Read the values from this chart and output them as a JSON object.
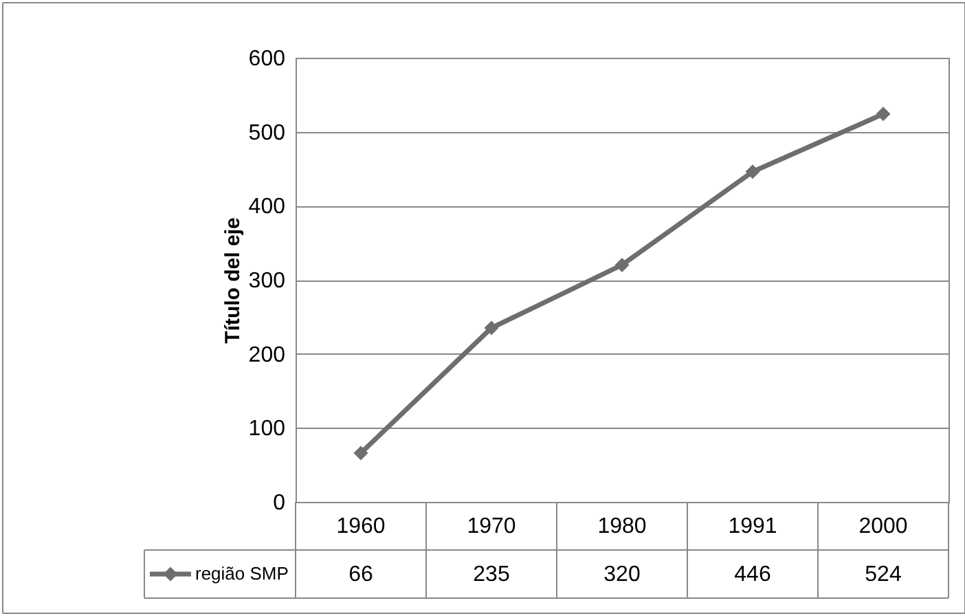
{
  "chart_data": {
    "type": "line",
    "ylabel": "Título del eje",
    "categories": [
      "1960",
      "1970",
      "1980",
      "1991",
      "2000"
    ],
    "series": [
      {
        "name": "região SMP",
        "color": "#6e6e6e",
        "values": [
          66,
          235,
          320,
          446,
          524
        ]
      }
    ],
    "ylim": [
      0,
      600
    ],
    "yticks": [
      0,
      100,
      200,
      300,
      400,
      500,
      600
    ],
    "grid": "y",
    "marker": "diamond",
    "legend": "bottom",
    "data_labels": true
  }
}
